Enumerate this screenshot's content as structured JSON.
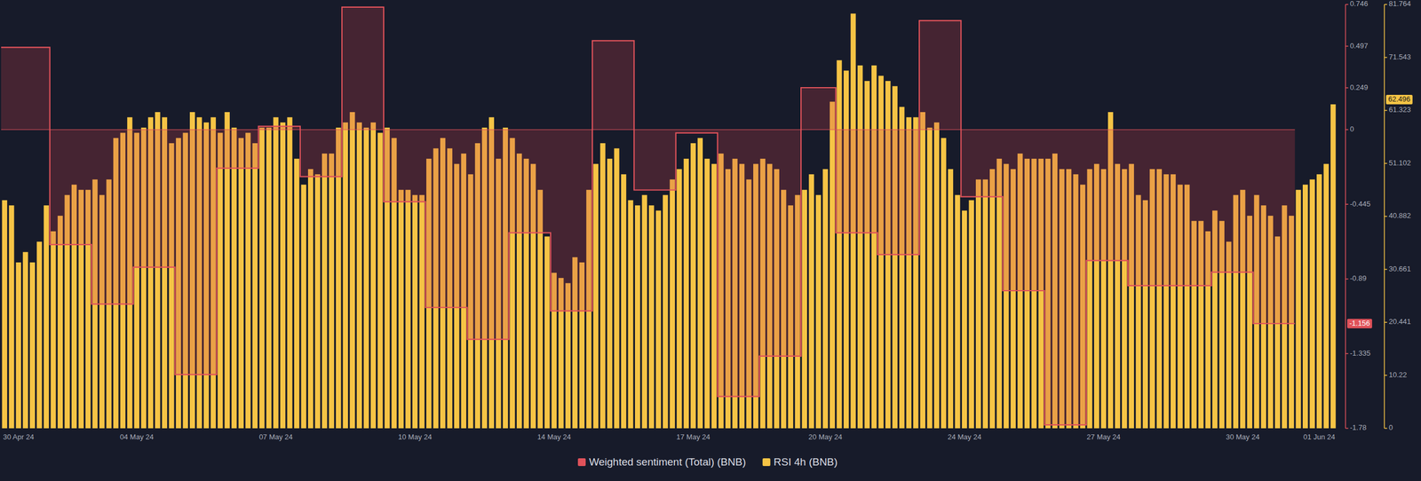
{
  "chart_data": {
    "type": "bar",
    "categories": [
      null,
      null,
      "30 Apr 24",
      null,
      null,
      null,
      null,
      null,
      null,
      null,
      null,
      null,
      null,
      null,
      null,
      null,
      null,
      null,
      null,
      "04 May 24",
      null,
      null,
      null,
      null,
      null,
      null,
      null,
      null,
      null,
      null,
      null,
      null,
      null,
      null,
      null,
      null,
      null,
      null,
      null,
      "07 May 24",
      null,
      null,
      null,
      null,
      null,
      null,
      null,
      null,
      null,
      null,
      null,
      null,
      null,
      null,
      null,
      null,
      null,
      null,
      null,
      "10 May 24",
      null,
      null,
      null,
      null,
      null,
      null,
      null,
      null,
      null,
      null,
      null,
      null,
      null,
      null,
      null,
      null,
      null,
      null,
      null,
      "14 May 24",
      null,
      null,
      null,
      null,
      null,
      null,
      null,
      null,
      null,
      null,
      null,
      null,
      null,
      null,
      null,
      null,
      null,
      null,
      null,
      "17 May 24",
      null,
      null,
      null,
      null,
      null,
      null,
      null,
      null,
      null,
      null,
      null,
      null,
      null,
      null,
      null,
      null,
      null,
      null,
      "20 May 24",
      null,
      null,
      null,
      null,
      null,
      null,
      null,
      null,
      null,
      null,
      null,
      null,
      null,
      null,
      null,
      null,
      null,
      null,
      null,
      "24 May 24",
      null,
      null,
      null,
      null,
      null,
      null,
      null,
      null,
      null,
      null,
      null,
      null,
      null,
      null,
      null,
      null,
      null,
      null,
      null,
      "27 May 24",
      null,
      null,
      null,
      null,
      null,
      null,
      null,
      null,
      null,
      null,
      null,
      null,
      null,
      null,
      null,
      null,
      null,
      null,
      null,
      "30 May 24",
      null,
      null,
      null,
      null,
      null,
      null,
      null,
      null,
      null,
      null,
      "01 Jun 24",
      null,
      null
    ],
    "series": [
      {
        "name": "Weighted sentiment (Total) (BNB)",
        "type": "line",
        "line_style": "step",
        "color": "#e0525a",
        "axis": "y",
        "values": [
          0.49,
          0.49,
          0.49,
          0.49,
          0.49,
          0.49,
          0.49,
          -0.685,
          -0.685,
          -0.685,
          -0.685,
          -0.685,
          -0.685,
          -1.04,
          -1.04,
          -1.04,
          -1.04,
          -1.04,
          -1.04,
          -0.82,
          -0.82,
          -0.82,
          -0.82,
          -0.82,
          -0.82,
          -1.46,
          -1.46,
          -1.46,
          -1.46,
          -1.46,
          -1.46,
          -0.23,
          -0.23,
          -0.23,
          -0.23,
          -0.23,
          -0.23,
          0.02,
          0.02,
          0.02,
          0.02,
          0.02,
          0.02,
          -0.28,
          -0.28,
          -0.28,
          -0.28,
          -0.28,
          -0.28,
          0.73,
          0.73,
          0.73,
          0.73,
          0.73,
          0.73,
          -0.43,
          -0.43,
          -0.43,
          -0.43,
          -0.43,
          -0.43,
          -1.06,
          -1.06,
          -1.06,
          -1.06,
          -1.06,
          -1.06,
          -1.25,
          -1.25,
          -1.25,
          -1.25,
          -1.25,
          -1.25,
          -0.615,
          -0.615,
          -0.615,
          -0.615,
          -0.615,
          -0.615,
          -1.08,
          -1.08,
          -1.08,
          -1.08,
          -1.08,
          -1.08,
          0.53,
          0.53,
          0.53,
          0.53,
          0.53,
          0.53,
          -0.36,
          -0.36,
          -0.36,
          -0.36,
          -0.36,
          -0.36,
          -0.02,
          -0.02,
          -0.02,
          -0.02,
          -0.02,
          -0.02,
          -1.59,
          -1.59,
          -1.59,
          -1.59,
          -1.59,
          -1.59,
          -1.35,
          -1.35,
          -1.35,
          -1.35,
          -1.35,
          -1.35,
          0.25,
          0.25,
          0.25,
          0.25,
          0.25,
          -0.615,
          -0.615,
          -0.615,
          -0.615,
          -0.615,
          -0.615,
          -0.745,
          -0.745,
          -0.745,
          -0.745,
          -0.745,
          -0.745,
          0.65,
          0.65,
          0.65,
          0.65,
          0.65,
          0.65,
          -0.4,
          -0.4,
          -0.4,
          -0.4,
          -0.4,
          -0.4,
          -0.96,
          -0.96,
          -0.96,
          -0.96,
          -0.96,
          -0.96,
          -1.76,
          -1.76,
          -1.76,
          -1.76,
          -1.76,
          -1.76,
          -0.78,
          -0.78,
          -0.78,
          -0.78,
          -0.78,
          -0.78,
          -0.93,
          -0.93,
          -0.93,
          -0.93,
          -0.93,
          -0.93,
          -0.93,
          -0.93,
          -0.93,
          -0.93,
          -0.93,
          -0.93,
          -0.85,
          -0.85,
          -0.85,
          -0.85,
          -0.85,
          -0.85,
          -1.156,
          -1.156,
          -1.156,
          -1.156,
          -1.156,
          -1.156,
          null,
          null,
          null,
          null,
          null,
          null
        ]
      },
      {
        "name": "RSI 4h (BNB)",
        "type": "bar",
        "color": "#f6c445",
        "axis": "y2",
        "values": [
          44,
          43,
          32,
          34,
          32,
          36,
          43,
          38,
          41,
          45,
          47,
          46,
          46,
          48,
          45,
          48,
          56,
          57,
          60,
          57,
          58,
          60,
          61,
          60,
          55,
          56,
          57,
          61,
          60,
          59,
          60,
          57,
          61,
          58,
          56,
          57,
          55,
          58,
          58,
          60,
          59,
          60,
          52,
          47,
          50,
          49,
          53,
          53,
          58,
          59,
          61,
          59,
          58,
          59,
          57,
          58,
          56,
          46,
          46,
          45,
          45,
          52,
          54,
          56,
          54,
          51,
          53,
          49,
          55,
          58,
          60,
          52,
          58,
          56,
          53,
          52,
          51,
          46,
          37,
          30,
          29,
          28,
          33,
          32,
          46,
          51,
          55,
          52,
          54,
          49,
          44,
          43,
          45,
          43,
          42,
          45,
          48,
          50,
          52,
          55,
          56,
          52,
          51,
          53,
          50,
          52,
          51,
          48,
          51,
          52,
          51,
          50,
          46,
          43,
          45,
          46,
          49,
          45,
          50,
          63,
          71,
          69,
          80,
          70,
          67,
          70,
          68,
          67,
          66,
          62,
          60,
          60,
          61,
          58,
          59,
          56,
          50,
          45,
          42,
          44,
          48,
          48,
          50,
          52,
          51,
          50,
          53,
          52,
          52,
          52,
          52,
          53,
          50,
          50,
          49,
          47,
          50,
          51,
          50,
          61,
          51,
          50,
          51,
          45,
          44,
          50,
          50,
          49,
          49,
          47,
          47,
          40,
          40,
          38,
          42,
          40,
          36,
          45,
          46,
          41,
          45,
          43,
          41,
          37,
          43,
          41,
          46,
          47,
          48,
          49,
          51,
          62.496
        ]
      }
    ],
    "ylim": [
      -1.78,
      0.746
    ],
    "yticks": [
      0.746,
      0.497,
      0.249,
      0,
      -0.445,
      -0.89,
      -1.335,
      -1.78
    ],
    "y2lim": [
      0,
      81.764
    ],
    "y2ticks": [
      0,
      10.22,
      20.441,
      30.661,
      40.882,
      51.102,
      61.323,
      71.543,
      81.764
    ],
    "annotations": [
      {
        "label": "-1.156",
        "value": -1.156,
        "axis": "y"
      },
      {
        "label": "62.496",
        "value": 62.496,
        "axis": "y2"
      }
    ],
    "grid": false,
    "legend": "bottom"
  }
}
